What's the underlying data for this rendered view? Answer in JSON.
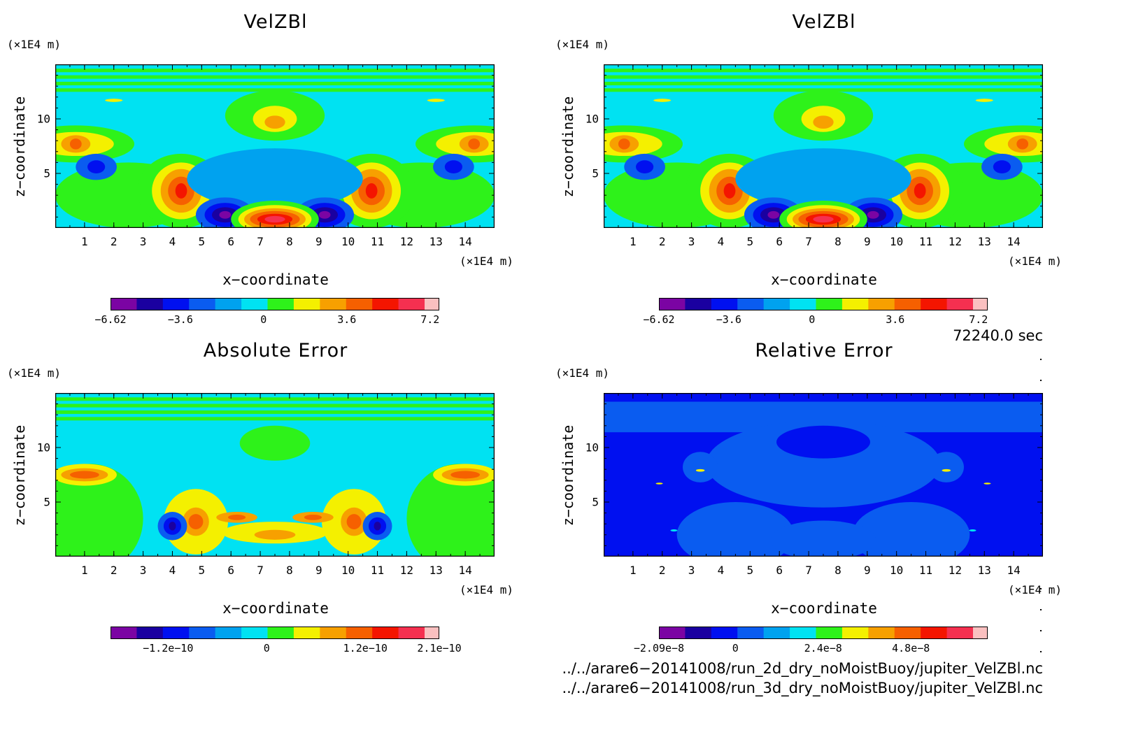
{
  "colors": {
    "scale": [
      "#7b04a3",
      "#1a00a0",
      "#0010f0",
      "#0a5cf0",
      "#00a2ef",
      "#00e2f2",
      "#2ef21a",
      "#f4f000",
      "#f7a000",
      "#f66000",
      "#f41500",
      "#f53050",
      "#fac0c0"
    ]
  },
  "chart_data": [
    {
      "type": "heatmap",
      "title": "VelZBl",
      "xlabel": "x−coordinate",
      "ylabel": "z−coordinate",
      "x_unit": "(×1E4 m)",
      "y_unit": "(×1E4 m)",
      "xlim": [
        0,
        15
      ],
      "ylim": [
        0,
        15
      ],
      "x_ticks": [
        "1",
        "2",
        "3",
        "4",
        "5",
        "6",
        "7",
        "8",
        "9",
        "10",
        "11",
        "12",
        "13",
        "14"
      ],
      "y_ticks": [
        "5",
        "10"
      ],
      "colorbar_ticks": [
        "−6.62",
        "−3.6",
        "0",
        "3.6",
        "7.2"
      ],
      "colorbar_tick_values": [
        -6.62,
        -3.6,
        0,
        3.6,
        7.2
      ],
      "colorbar_range": [
        -6.62,
        7.6
      ]
    },
    {
      "type": "heatmap",
      "title": "VelZBl",
      "xlabel": "x−coordinate",
      "ylabel": "z−coordinate",
      "x_unit": "(×1E4 m)",
      "y_unit": "(×1E4 m)",
      "xlim": [
        0,
        15
      ],
      "ylim": [
        0,
        15
      ],
      "x_ticks": [
        "1",
        "2",
        "3",
        "4",
        "5",
        "6",
        "7",
        "8",
        "9",
        "10",
        "11",
        "12",
        "13",
        "14"
      ],
      "y_ticks": [
        "5",
        "10"
      ],
      "colorbar_ticks": [
        "−6.62",
        "−3.6",
        "0",
        "3.6",
        "7.2"
      ],
      "colorbar_tick_values": [
        -6.62,
        -3.6,
        0,
        3.6,
        7.2
      ],
      "colorbar_range": [
        -6.62,
        7.6
      ]
    },
    {
      "type": "heatmap",
      "title": "Absolute Error",
      "xlabel": "x−coordinate",
      "ylabel": "z−coordinate",
      "x_unit": "(×1E4 m)",
      "y_unit": "(×1E4 m)",
      "xlim": [
        0,
        15
      ],
      "ylim": [
        0,
        15
      ],
      "x_ticks": [
        "1",
        "2",
        "3",
        "4",
        "5",
        "6",
        "7",
        "8",
        "9",
        "10",
        "11",
        "12",
        "13",
        "14"
      ],
      "y_ticks": [
        "5",
        "10"
      ],
      "colorbar_ticks": [
        "−1.2e−10",
        "0",
        "1.2e−10",
        "2.1e−10"
      ],
      "colorbar_tick_values": [
        -1.2e-10,
        0,
        1.2e-10,
        2.1e-10
      ],
      "colorbar_range": [
        -1.9e-10,
        2.1e-10
      ]
    },
    {
      "type": "heatmap",
      "title": "Relative Error",
      "xlabel": "x−coordinate",
      "ylabel": "z−coordinate",
      "x_unit": "(×1E4 m)",
      "y_unit": "(×1E4 m)",
      "xlim": [
        0,
        15
      ],
      "ylim": [
        0,
        15
      ],
      "x_ticks": [
        "1",
        "2",
        "3",
        "4",
        "5",
        "6",
        "7",
        "8",
        "9",
        "10",
        "11",
        "12",
        "13",
        "14"
      ],
      "y_ticks": [
        "5",
        "10"
      ],
      "colorbar_ticks": [
        "−2.09e−8",
        "0",
        "2.4e−8",
        "4.8e−8"
      ],
      "colorbar_tick_values": [
        -2.09e-08,
        0,
        2.4e-08,
        4.8e-08
      ],
      "colorbar_range": [
        -2.09e-08,
        6.9e-08
      ]
    }
  ],
  "footer": {
    "time": "72240.0 sec",
    "file1": "../../arare6−20141008/run_2d_dry_noMoistBuoy/jupiter_VelZBl.nc",
    "file2": "../../arare6−20141008/run_3d_dry_noMoistBuoy/jupiter_VelZBl.nc"
  }
}
